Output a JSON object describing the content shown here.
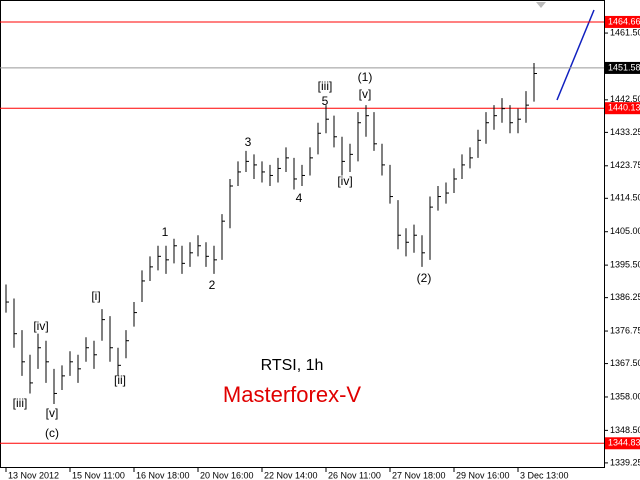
{
  "chart_data": {
    "type": "hlc",
    "title": "RTSI, 1h",
    "subtitle": "Masterforex-V",
    "color": "#000000",
    "high": [
      1390,
      1386,
      1377,
      1370,
      1376,
      1374,
      1366,
      1367,
      1371,
      1370,
      1375,
      1374,
      1383,
      1381,
      1372,
      1377,
      1385,
      1394,
      1398,
      1401,
      1401,
      1403,
      1401,
      1402,
      1404,
      1402,
      1401,
      1410,
      1420,
      1425,
      1428,
      1427,
      1425,
      1424,
      1426,
      1429,
      1426,
      1424,
      1429,
      1436,
      1441,
      1438,
      1432,
      1430,
      1439,
      1441,
      1439,
      1430,
      1424,
      1414,
      1406,
      1407,
      1404,
      1415,
      1418,
      1419,
      1423,
      1427,
      1429,
      1434,
      1439,
      1441,
      1443,
      1441,
      1440,
      1445,
      1453
    ],
    "low": [
      1382,
      1372,
      1364,
      1359,
      1366,
      1362,
      1356,
      1360,
      1364,
      1362,
      1368,
      1366,
      1374,
      1368,
      1364,
      1369,
      1378,
      1385,
      1391,
      1394,
      1393,
      1396,
      1393,
      1395,
      1398,
      1395,
      1393,
      1397,
      1406,
      1418,
      1422,
      1420,
      1419,
      1418,
      1419,
      1422,
      1417,
      1418,
      1421,
      1427,
      1433,
      1429,
      1421,
      1422,
      1425,
      1432,
      1428,
      1421,
      1413,
      1400,
      1398,
      1399,
      1395,
      1397,
      1411,
      1413,
      1416,
      1420,
      1423,
      1426,
      1430,
      1434,
      1436,
      1433,
      1433,
      1436,
      1442
    ],
    "close": [
      1385,
      1376,
      1368,
      1362,
      1372,
      1368,
      1359,
      1364,
      1368,
      1366,
      1372,
      1370,
      1380,
      1372,
      1367,
      1374,
      1382,
      1391,
      1395,
      1398,
      1397,
      1401,
      1396,
      1399,
      1401,
      1398,
      1397,
      1408,
      1418,
      1422,
      1425,
      1424,
      1422,
      1421,
      1423,
      1426,
      1420,
      1421,
      1426,
      1433,
      1437,
      1432,
      1425,
      1427,
      1436,
      1438,
      1430,
      1424,
      1415,
      1404,
      1402,
      1404,
      1399,
      1412,
      1415,
      1416,
      1420,
      1424,
      1426,
      1431,
      1436,
      1438,
      1440,
      1436,
      1437,
      1441,
      1450
    ],
    "xlim": [
      -0.75,
      74.75
    ],
    "xticks": [
      {
        "value": 0,
        "label": "13 Nov 2012"
      },
      {
        "value": 8,
        "label": "15 Nov 11:00"
      },
      {
        "value": 16,
        "label": "16 Nov 18:00"
      },
      {
        "value": 24,
        "label": "20 Nov 16:00"
      },
      {
        "value": 32,
        "label": "22 Nov 14:00"
      },
      {
        "value": 40,
        "label": "26 Nov 11:00"
      },
      {
        "value": 48,
        "label": "27 Nov 18:00"
      },
      {
        "value": 56,
        "label": "29 Nov 16:00"
      },
      {
        "value": 64,
        "label": "3 Dec 13:00"
      }
    ],
    "ylim": [
      1337.8,
      1470.9
    ],
    "yticks": [
      {
        "value": 1461.5,
        "label": "1461.50"
      },
      {
        "value": 1442.5,
        "label": "1442.50"
      },
      1433.25,
      1423.75,
      {
        "value": 1414.5,
        "label": "1414.50"
      },
      {
        "value": 1405,
        "label": "1405.00"
      },
      {
        "value": 1395.5,
        "label": "1395.50"
      },
      1386.25,
      1376.75,
      {
        "value": 1367.5,
        "label": "1367.50"
      },
      {
        "value": 1358,
        "label": "1358.00"
      },
      {
        "value": 1348.5,
        "label": "1348.50"
      },
      1339.25
    ],
    "levels": [
      {
        "value": 1464.66,
        "color": "#ff0000"
      },
      {
        "value": 1451.58,
        "color": "#000000"
      },
      {
        "value": 1440.13,
        "color": "#ff0000"
      },
      {
        "value": 1344.83,
        "color": "#ff0000"
      }
    ],
    "annotations": [
      "[iv]",
      "[iii]",
      "[v]",
      "(c)",
      "[i]",
      "[ii]",
      "1",
      "2",
      "3",
      "4",
      "[iii]",
      "5",
      "[iv]",
      "(1)",
      "[v]",
      "(2)"
    ]
  }
}
